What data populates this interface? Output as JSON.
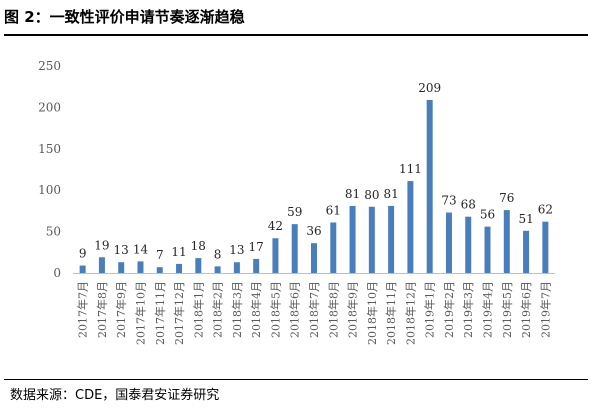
{
  "caption": "图 2：一致性评价申请节奏逐渐趋稳",
  "source": "数据来源：CDE，国泰君安证券研究",
  "chart_data": {
    "type": "bar",
    "title": "",
    "xlabel": "",
    "ylabel": "",
    "ylim": [
      0,
      250
    ],
    "yticks": [
      0,
      50,
      100,
      150,
      200,
      250
    ],
    "grid": false,
    "legend": "none",
    "bar_color": "#4a7ebb",
    "categories": [
      "2017年7月",
      "2017年8月",
      "2017年9月",
      "2017年10月",
      "2017年11月",
      "2017年12月",
      "2018年1月",
      "2018年2月",
      "2018年3月",
      "2018年4月",
      "2018年5月",
      "2018年6月",
      "2018年7月",
      "2018年8月",
      "2018年9月",
      "2018年10月",
      "2018年11月",
      "2018年12月",
      "2019年1月",
      "2019年2月",
      "2019年3月",
      "2019年4月",
      "2019年5月",
      "2019年6月",
      "2019年7月"
    ],
    "values": [
      9,
      19,
      13,
      14,
      7,
      11,
      18,
      8,
      13,
      17,
      42,
      59,
      36,
      61,
      81,
      80,
      81,
      111,
      209,
      73,
      68,
      56,
      76,
      51,
      62
    ]
  }
}
